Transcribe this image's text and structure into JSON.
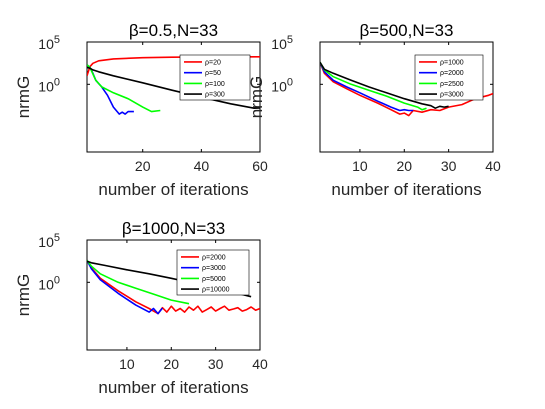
{
  "chart_data": [
    {
      "type": "line",
      "title": "β=0.5,N=33",
      "xlabel": "number of iterations",
      "ylabel": "nrmG",
      "yscale": "log",
      "xlim": [
        1,
        60
      ],
      "ylim": [
        1e-08,
        100000.0
      ],
      "xticks": [
        "20",
        "40",
        "60"
      ],
      "yticks": [
        "10^5",
        "10^0"
      ],
      "legend_position": "top-right",
      "series": [
        {
          "name": "ρ=20",
          "color": "#ff0000",
          "x": [
            1,
            2,
            3,
            5,
            10,
            20,
            30,
            40,
            50,
            60
          ],
          "y": [
            10,
            120,
            300,
            600,
            1000,
            1400,
            1600,
            1700,
            1750,
            1800
          ]
        },
        {
          "name": "ρ=50",
          "color": "#0000ff",
          "x": [
            1,
            2,
            3,
            4,
            6,
            8,
            10,
            12,
            13,
            14,
            15,
            17
          ],
          "y": [
            200,
            100,
            20,
            3,
            0.5,
            0.05,
            0.002,
            0.0003,
            0.0005,
            0.0003,
            0.0006,
            0.0006
          ]
        },
        {
          "name": "ρ=100",
          "color": "#00ff00",
          "x": [
            1,
            2,
            4,
            6,
            10,
            15,
            20,
            23,
            26
          ],
          "y": [
            200,
            100,
            3,
            0.5,
            0.1,
            0.02,
            0.002,
            0.0006,
            0.0008
          ]
        },
        {
          "name": "ρ=300",
          "color": "#000000",
          "x": [
            1,
            2,
            3,
            5,
            10,
            20,
            30,
            40,
            50,
            58,
            60
          ],
          "y": [
            100,
            80,
            50,
            30,
            10,
            1.5,
            0.2,
            0.03,
            0.005,
            0.0015,
            0.0016
          ]
        }
      ]
    },
    {
      "type": "line",
      "title": "β=500,N=33",
      "xlabel": "number of iterations",
      "ylabel": "nrmG",
      "yscale": "log",
      "xlim": [
        1,
        40
      ],
      "ylim": [
        1e-08,
        100000.0
      ],
      "xticks": [
        "10",
        "20",
        "30",
        "40"
      ],
      "yticks": [
        "10^5",
        "10^0"
      ],
      "legend_position": "top-right",
      "series": [
        {
          "name": "ρ=1000",
          "color": "#ff0000",
          "x": [
            1,
            2,
            4,
            7,
            10,
            14,
            17,
            19,
            20,
            21,
            22,
            24,
            26,
            28,
            30,
            33,
            36,
            39,
            40
          ],
          "y": [
            400,
            20,
            2,
            0.3,
            0.05,
            0.006,
            0.001,
            0.0003,
            0.0004,
            0.0002,
            0.0008,
            0.0005,
            0.001,
            0.0008,
            0.002,
            0.004,
            0.02,
            0.05,
            0.08
          ]
        },
        {
          "name": "ρ=2000",
          "color": "#0000ff",
          "x": [
            1,
            2,
            4,
            7,
            10,
            14,
            17,
            19,
            20,
            21,
            22
          ],
          "y": [
            400,
            30,
            3,
            0.5,
            0.1,
            0.01,
            0.002,
            0.0008,
            0.001,
            0.0008,
            0.0008
          ]
        },
        {
          "name": "ρ=2500",
          "color": "#00ff00",
          "x": [
            1,
            2,
            4,
            8,
            12,
            16,
            20,
            23,
            24,
            25
          ],
          "y": [
            400,
            50,
            8,
            1,
            0.2,
            0.04,
            0.006,
            0.002,
            0.001,
            0.0015
          ]
        },
        {
          "name": "ρ=3000",
          "color": "#000000",
          "x": [
            1,
            2,
            4,
            8,
            12,
            16,
            20,
            24,
            26,
            27,
            28,
            29,
            30
          ],
          "y": [
            400,
            60,
            20,
            3,
            0.5,
            0.1,
            0.02,
            0.005,
            0.003,
            0.0015,
            0.0025,
            0.002,
            0.0025
          ]
        }
      ]
    },
    {
      "type": "line",
      "title": "β=1000,N=33",
      "xlabel": "number of iterations",
      "ylabel": "nrmG",
      "yscale": "log",
      "xlim": [
        1,
        40
      ],
      "ylim": [
        1e-08,
        100000.0
      ],
      "xticks": [
        "10",
        "20",
        "30",
        "40"
      ],
      "yticks": [
        "10^5",
        "10^0"
      ],
      "legend_position": "top-right",
      "series": [
        {
          "name": "ρ=2000",
          "color": "#ff0000",
          "x": [
            1,
            2,
            4,
            8,
            12,
            15,
            17,
            18,
            19,
            20,
            21,
            22,
            23,
            24,
            25,
            26,
            27,
            28,
            29,
            30,
            31,
            32,
            33,
            34,
            35,
            36,
            37,
            38,
            39,
            40
          ],
          "y": [
            400,
            50,
            3,
            0.1,
            0.005,
            0.0008,
            0.0002,
            0.001,
            0.0003,
            0.0015,
            0.0004,
            0.0008,
            0.0003,
            0.0012,
            0.0005,
            0.0015,
            0.0003,
            0.0006,
            0.0012,
            0.0004,
            0.0008,
            0.0015,
            0.0005,
            0.0007,
            0.001,
            0.0004,
            0.0006,
            0.0012,
            0.0005,
            0.0008
          ]
        },
        {
          "name": "ρ=3000",
          "color": "#0000ff",
          "x": [
            1,
            2,
            4,
            8,
            12,
            15,
            16,
            17,
            18
          ],
          "y": [
            400,
            40,
            2,
            0.05,
            0.002,
            0.0003,
            0.0008,
            0.0002,
            0.0009
          ]
        },
        {
          "name": "ρ=5000",
          "color": "#00ff00",
          "x": [
            1,
            2,
            4,
            8,
            12,
            16,
            20,
            24
          ],
          "y": [
            400,
            80,
            10,
            1,
            0.2,
            0.04,
            0.008,
            0.003
          ]
        },
        {
          "name": "ρ=10000",
          "color": "#000000",
          "x": [
            1,
            2,
            5,
            10,
            15,
            20,
            25,
            30,
            35,
            38
          ],
          "y": [
            300,
            200,
            100,
            30,
            10,
            3,
            0.8,
            0.2,
            0.05,
            0.02
          ]
        }
      ]
    }
  ]
}
